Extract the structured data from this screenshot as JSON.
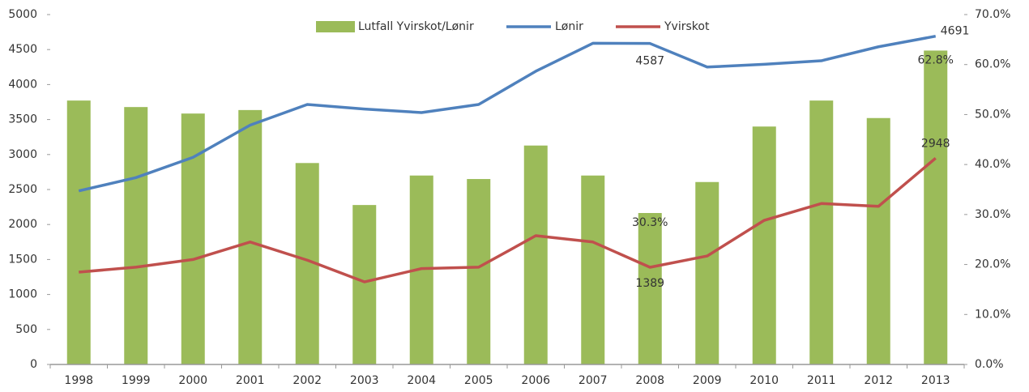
{
  "chart_data": {
    "type": "bar_line",
    "categories": [
      "1998",
      "1999",
      "2000",
      "2001",
      "2002",
      "2003",
      "2004",
      "2005",
      "2006",
      "2007",
      "2008",
      "2009",
      "2010",
      "2011",
      "2012",
      "2013"
    ],
    "series": [
      {
        "name": "Lutfall Yvirskot/Lønir",
        "type": "bar",
        "axis": "y2",
        "color": "#9bbb59",
        "values": [
          52.8,
          51.5,
          50.2,
          50.9,
          40.3,
          31.9,
          37.8,
          37.1,
          43.8,
          37.8,
          30.3,
          36.5,
          47.6,
          52.8,
          49.3,
          62.8
        ],
        "value_labels": [
          null,
          null,
          null,
          null,
          null,
          null,
          null,
          null,
          null,
          null,
          "30.3%",
          null,
          null,
          null,
          null,
          "62.8%"
        ]
      },
      {
        "name": "Lønir",
        "type": "line",
        "color": "#4f81bd",
        "values": [
          2480,
          2670,
          2960,
          3420,
          3715,
          3650,
          3600,
          3715,
          4190,
          4590,
          4587,
          4250,
          4290,
          4340,
          4540,
          4691
        ],
        "value_labels": [
          null,
          null,
          null,
          null,
          null,
          null,
          null,
          null,
          null,
          null,
          "4587",
          null,
          null,
          null,
          null,
          "4691"
        ]
      },
      {
        "name": "Yvirskot",
        "type": "line",
        "color": "#c0504d",
        "values": [
          1320,
          1390,
          1500,
          1750,
          1490,
          1180,
          1370,
          1390,
          1840,
          1750,
          1389,
          1550,
          2060,
          2300,
          2260,
          2948
        ],
        "value_labels": [
          null,
          null,
          null,
          null,
          null,
          null,
          null,
          null,
          null,
          null,
          "1389",
          null,
          null,
          null,
          null,
          "2948"
        ]
      }
    ],
    "ylim": [
      0,
      5000
    ],
    "yticks": [
      0,
      500,
      1000,
      1500,
      2000,
      2500,
      3000,
      3500,
      4000,
      4500,
      5000
    ],
    "y2lim": [
      0,
      70
    ],
    "y2ticks": [
      {
        "value": 0,
        "label": "0.0%"
      },
      {
        "value": 10,
        "label": "10.0%"
      },
      {
        "value": 20,
        "label": "20.0%"
      },
      {
        "value": 30,
        "label": "30.0%"
      },
      {
        "value": 40,
        "label": "40.0%"
      },
      {
        "value": 50,
        "label": "50.0%"
      },
      {
        "value": 60,
        "label": "60.0%"
      },
      {
        "value": 70,
        "label": "70.0%"
      }
    ],
    "legend": "top"
  }
}
